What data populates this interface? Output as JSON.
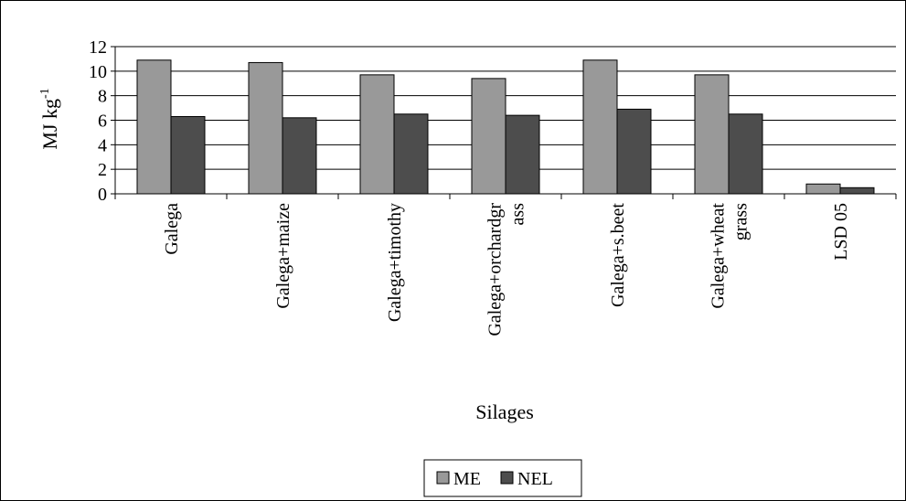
{
  "chart_data": {
    "type": "bar",
    "categories": [
      [
        "Galega"
      ],
      [
        "Galega+maize"
      ],
      [
        "Galega+timothy"
      ],
      [
        "Galega+orchardgr",
        "ass"
      ],
      [
        "Galega+s.beet"
      ],
      [
        "Galega+wheat",
        "grass"
      ],
      [
        "LSD 05"
      ]
    ],
    "series": [
      {
        "name": "ME",
        "values": [
          10.9,
          10.7,
          9.7,
          9.4,
          10.9,
          9.7,
          0.8
        ],
        "color": "#999999"
      },
      {
        "name": "NEL",
        "values": [
          6.3,
          6.2,
          6.5,
          6.4,
          6.9,
          6.5,
          0.5
        ],
        "color": "#4d4d4d"
      }
    ],
    "ylim": [
      0,
      12
    ],
    "yticks": [
      0,
      2,
      4,
      6,
      8,
      10,
      12
    ],
    "xlabel": "Silages",
    "ylabel": "MJ kg",
    "ylabel_superscript": "-1",
    "grid": true,
    "legend_position": "bottom"
  }
}
